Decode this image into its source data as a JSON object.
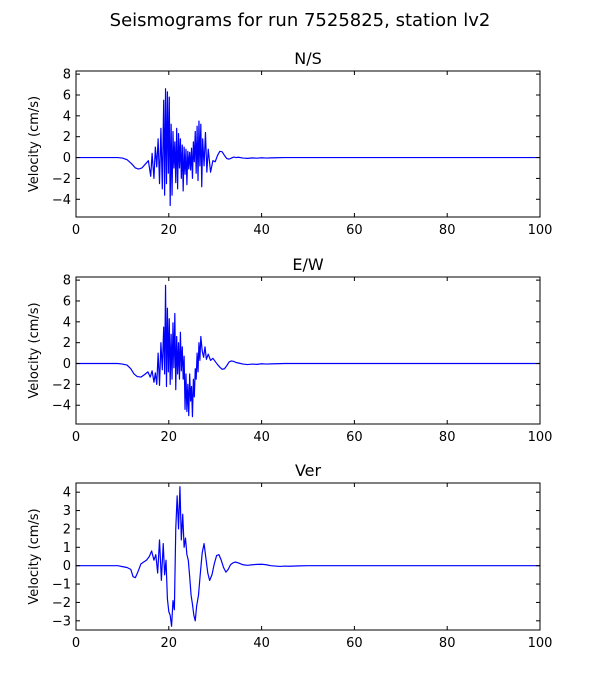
{
  "figure": {
    "title": "Seismograms for run 7525825, station lv2"
  },
  "chart_data": [
    {
      "type": "line",
      "title": "N/S",
      "xlabel": "",
      "ylabel": "Velocity (cm/s)",
      "xlim": [
        0,
        100
      ],
      "ylim": [
        -5.7,
        8.3
      ],
      "xticks": [
        0,
        20,
        40,
        60,
        80,
        100
      ],
      "yticks": [
        -4,
        -2,
        0,
        2,
        4,
        6,
        8
      ],
      "grid": false,
      "color": "#0000ff",
      "series": [
        {
          "x": [
            0,
            9,
            10,
            11,
            12,
            12.8,
            13.5,
            14.2,
            15,
            15.6,
            16.1,
            16.4,
            16.8,
            17.1,
            17.4,
            17.7,
            18,
            18.3,
            18.6,
            18.9,
            19.1,
            19.3,
            19.5,
            19.7,
            19.9,
            20.1,
            20.3,
            20.5,
            20.7,
            20.9,
            21.1,
            21.3,
            21.5,
            21.7,
            21.9,
            22.1,
            22.3,
            22.5,
            22.7,
            22.9,
            23.1,
            23.3,
            23.5,
            23.7,
            23.9,
            24.1,
            24.3,
            24.5,
            24.7,
            24.9,
            25.1,
            25.3,
            25.5,
            25.7,
            25.9,
            26.1,
            26.3,
            26.5,
            26.7,
            26.9,
            27.1,
            27.3,
            27.6,
            27.9,
            28.2,
            28.5,
            29,
            29.5,
            30,
            30.5,
            31,
            31.5,
            32,
            32.5,
            33,
            33.5,
            34,
            34.5,
            35,
            36,
            37,
            38,
            39,
            40,
            41,
            42,
            43,
            45,
            50,
            60,
            70,
            80,
            90,
            100
          ],
          "y": [
            0,
            0,
            -0.05,
            -0.2,
            -0.6,
            -1.0,
            -1.1,
            -1.0,
            -0.6,
            -0.3,
            -1.8,
            0.4,
            -2.0,
            1.0,
            -0.9,
            1.8,
            -2.5,
            2.8,
            -3.0,
            5.5,
            -3.6,
            6.6,
            -2.5,
            6.3,
            -1.5,
            5.8,
            -4.6,
            3.2,
            -3.6,
            2.5,
            -1.0,
            1.5,
            -2.4,
            2.8,
            -3.0,
            2.3,
            -1.0,
            1.8,
            -2.0,
            1.2,
            -3.2,
            1.0,
            -1.6,
            0.8,
            -2.6,
            0.6,
            -1.1,
            0.5,
            -1.2,
            0.9,
            -2.0,
            1.5,
            -0.4,
            2.5,
            -1.5,
            3.0,
            -2.2,
            3.5,
            -0.8,
            3.2,
            -2.8,
            1.8,
            -0.8,
            2.4,
            -1.4,
            0.8,
            -1.4,
            -0.3,
            -0.4,
            0.2,
            0.6,
            0.55,
            0.2,
            -0.1,
            -0.15,
            -0.05,
            0.05,
            0.0,
            0.03,
            -0.05,
            -0.08,
            -0.03,
            -0.06,
            -0.02,
            -0.05,
            -0.03,
            -0.02,
            0,
            0,
            0,
            0,
            0,
            0,
            0
          ]
        }
      ]
    },
    {
      "type": "line",
      "title": "E/W",
      "xlabel": "",
      "ylabel": "Velocity (cm/s)",
      "xlim": [
        0,
        100
      ],
      "ylim": [
        -5.8,
        8.3
      ],
      "xticks": [
        0,
        20,
        40,
        60,
        80,
        100
      ],
      "yticks": [
        -4,
        -2,
        0,
        2,
        4,
        6,
        8
      ],
      "grid": false,
      "color": "#0000ff",
      "series": [
        {
          "x": [
            0,
            9,
            10,
            11,
            11.8,
            12.5,
            13.2,
            14,
            14.8,
            15.5,
            16,
            16.4,
            16.8,
            17.1,
            17.4,
            17.7,
            18,
            18.3,
            18.6,
            18.9,
            19.1,
            19.3,
            19.5,
            19.7,
            19.9,
            20.1,
            20.3,
            20.5,
            20.7,
            20.9,
            21.1,
            21.3,
            21.5,
            21.7,
            21.9,
            22.1,
            22.3,
            22.5,
            22.7,
            22.9,
            23.1,
            23.3,
            23.5,
            23.7,
            23.9,
            24.1,
            24.3,
            24.5,
            24.7,
            24.9,
            25.1,
            25.3,
            25.5,
            25.7,
            25.9,
            26.1,
            26.3,
            26.5,
            26.7,
            26.9,
            27.2,
            27.5,
            27.8,
            28.1,
            28.5,
            29,
            29.5,
            30,
            30.5,
            31,
            31.5,
            32,
            32.5,
            33,
            33.5,
            34,
            34.5,
            35,
            36,
            37,
            38,
            39,
            40,
            41,
            42,
            43,
            45,
            50,
            60,
            70,
            80,
            90,
            100
          ],
          "y": [
            0,
            0,
            -0.05,
            -0.15,
            -0.5,
            -1.0,
            -1.25,
            -1.3,
            -1.05,
            -0.8,
            -1.3,
            -0.7,
            -1.8,
            -0.9,
            -2.0,
            1.0,
            -2.1,
            2.0,
            -0.6,
            3.5,
            -1.0,
            7.5,
            -2.2,
            5.3,
            -0.8,
            4.3,
            -2.0,
            2.8,
            -1.5,
            3.9,
            -0.4,
            4.8,
            -2.5,
            2.6,
            -1.0,
            2.0,
            -1.5,
            3.0,
            -0.7,
            1.6,
            -1.5,
            0.7,
            -4.4,
            -1.0,
            -4.6,
            -2.0,
            -5.0,
            -1.0,
            -3.6,
            -2.2,
            -5.1,
            -1.5,
            -3.2,
            -0.5,
            -1.5,
            1.0,
            -0.8,
            2.0,
            0.3,
            2.6,
            1.2,
            0.6,
            1.6,
            0.4,
            0.9,
            0.3,
            0.5,
            0.2,
            -0.1,
            -0.35,
            -0.55,
            -0.5,
            -0.2,
            0.15,
            0.25,
            0.2,
            0.1,
            0.05,
            -0.05,
            -0.1,
            -0.05,
            -0.08,
            -0.02,
            -0.05,
            -0.03,
            -0.02,
            0,
            0,
            0,
            0,
            0,
            0,
            0
          ]
        }
      ]
    },
    {
      "type": "line",
      "title": "Ver",
      "xlabel": "",
      "ylabel": "Velocity (cm/s)",
      "xlim": [
        0,
        100
      ],
      "ylim": [
        -3.5,
        4.5
      ],
      "xticks": [
        0,
        20,
        40,
        60,
        80,
        100
      ],
      "yticks": [
        -3,
        -2,
        -1,
        0,
        1,
        2,
        3,
        4
      ],
      "grid": false,
      "color": "#0000ff",
      "series": [
        {
          "x": [
            0,
            9,
            10,
            11,
            11.8,
            12.3,
            12.8,
            13.4,
            14,
            14.6,
            15.2,
            15.8,
            16.3,
            16.8,
            17.2,
            17.6,
            18,
            18.4,
            18.8,
            19.1,
            19.4,
            19.7,
            20,
            20.3,
            20.6,
            20.9,
            21.2,
            21.5,
            21.8,
            22.1,
            22.4,
            22.7,
            23,
            23.3,
            23.6,
            23.9,
            24.2,
            24.5,
            24.8,
            25.1,
            25.4,
            25.7,
            26,
            26.4,
            26.8,
            27.2,
            27.6,
            28,
            28.4,
            28.8,
            29.3,
            29.8,
            30.3,
            30.8,
            31.3,
            31.8,
            32.3,
            32.8,
            33.3,
            33.8,
            34.3,
            35,
            36,
            37,
            38,
            39,
            40,
            41,
            42,
            43,
            44,
            45,
            46,
            48,
            50,
            60,
            70,
            80,
            90,
            100
          ],
          "y": [
            0,
            0,
            -0.05,
            -0.1,
            -0.2,
            -0.6,
            -0.65,
            -0.3,
            0.1,
            0.2,
            0.3,
            0.5,
            0.8,
            0.3,
            0.6,
            -0.4,
            1.4,
            -0.8,
            1.2,
            -0.5,
            0.3,
            -1.8,
            -2.5,
            -2.7,
            -3.3,
            -1.9,
            -2.4,
            2.0,
            3.8,
            2.0,
            4.3,
            1.4,
            2.8,
            1.0,
            1.5,
            0.6,
            0.3,
            -0.6,
            -1.6,
            -2.1,
            -2.7,
            -3.0,
            -2.2,
            -1.6,
            -0.4,
            0.7,
            1.2,
            0.4,
            -0.4,
            -0.8,
            -0.5,
            0.1,
            0.55,
            0.6,
            0.3,
            -0.1,
            -0.35,
            -0.2,
            0.05,
            0.15,
            0.2,
            0.15,
            0.05,
            0.02,
            0.05,
            0.07,
            0.08,
            0.05,
            0.0,
            -0.02,
            -0.04,
            -0.02,
            -0.03,
            -0.01,
            0,
            0,
            0,
            0,
            0,
            0
          ]
        }
      ]
    }
  ]
}
